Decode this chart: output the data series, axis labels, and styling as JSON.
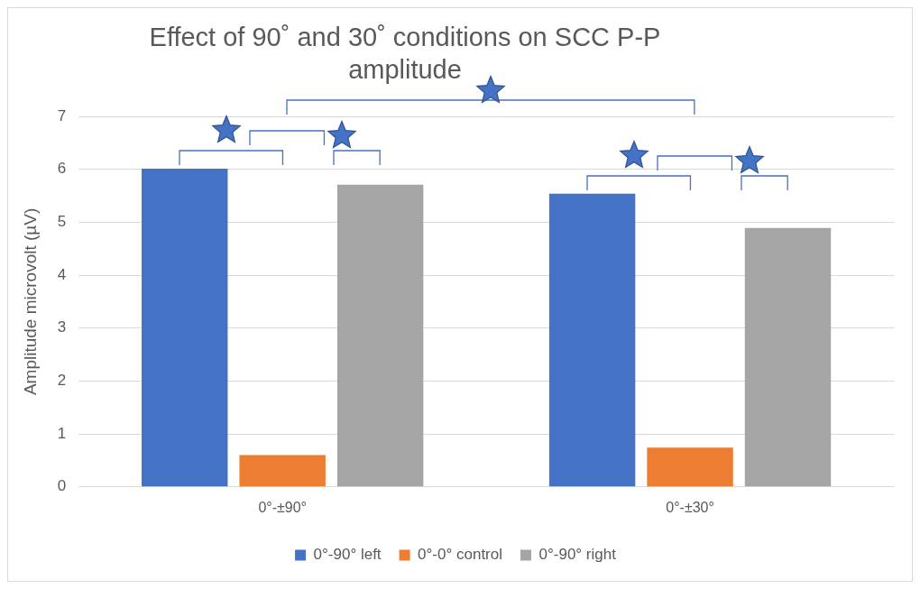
{
  "chart_data": {
    "type": "bar",
    "title": "Effect of 90˚ and 30˚ conditions on SCC P-P amplitude",
    "ylabel": "Amplitude microvolt (µV)",
    "categories": [
      "0°-±90°",
      "0°-±30°"
    ],
    "series": [
      {
        "name": "0°-90° left",
        "color": "#4472c4",
        "values": [
          6.01,
          5.54
        ]
      },
      {
        "name": "0°-0° control",
        "color": "#ed7d31",
        "values": [
          0.6,
          0.74
        ]
      },
      {
        "name": "0°-90° right",
        "color": "#a5a5a5",
        "values": [
          5.71,
          4.89
        ]
      }
    ],
    "ylim": [
      0,
      7
    ],
    "yticks": [
      0,
      1,
      2,
      3,
      4,
      5,
      6,
      7
    ],
    "grid": "y",
    "legend": "bottom"
  }
}
